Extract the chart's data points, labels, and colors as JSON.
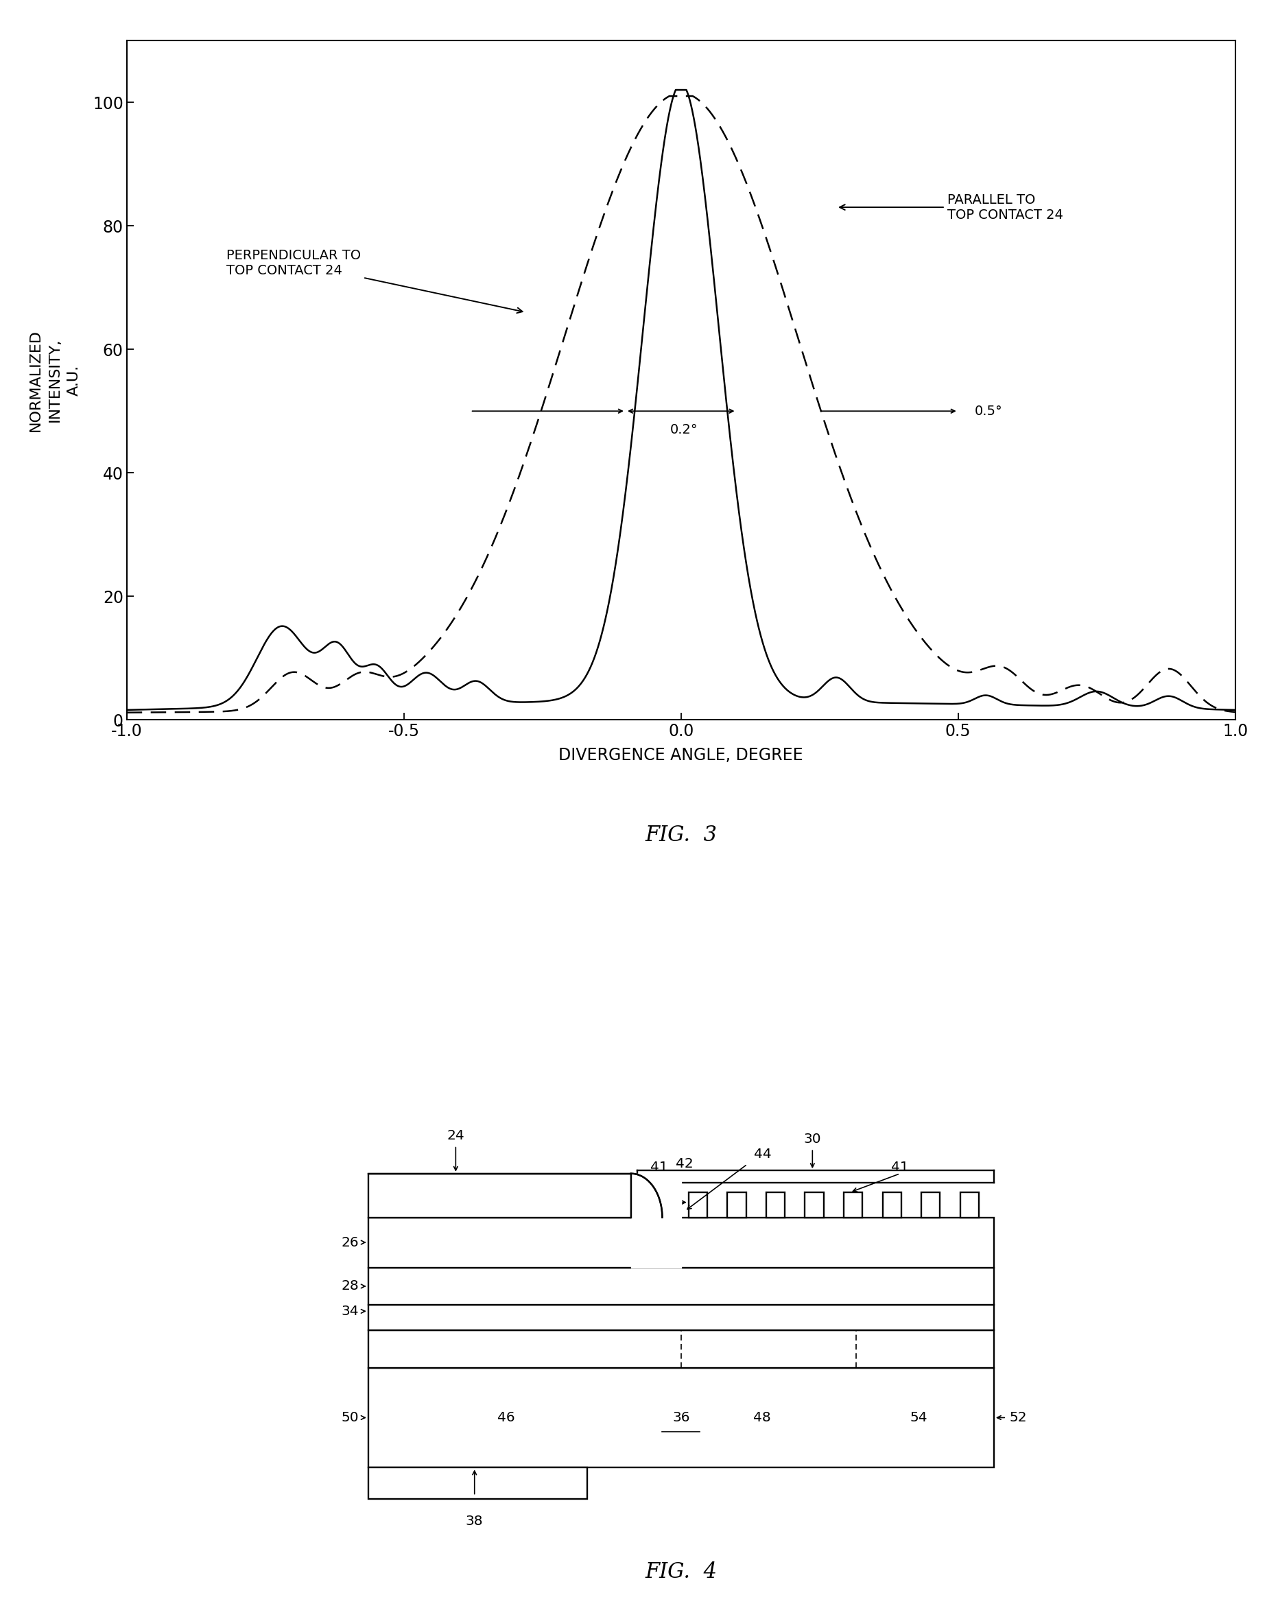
{
  "fig3": {
    "xlabel": "DIVERGENCE ANGLE, DEGREE",
    "ylabel": "NORMALIZED\nINTENSITY,\nA.U.",
    "xlim": [
      -1.0,
      1.0
    ],
    "ylim": [
      0,
      110
    ],
    "yticks": [
      0,
      20,
      40,
      60,
      80,
      100
    ],
    "xticks": [
      -1.0,
      -0.5,
      0.0,
      0.5,
      1.0
    ],
    "xtick_labels": [
      "-1.0",
      "-0.5",
      "0.0",
      "0.5",
      "1.0"
    ],
    "ytick_labels": [
      "0",
      "20",
      "40",
      "60",
      "80",
      "100"
    ]
  },
  "fig4": {
    "title": "FIG.  4"
  },
  "caption3": "FIG.  3"
}
